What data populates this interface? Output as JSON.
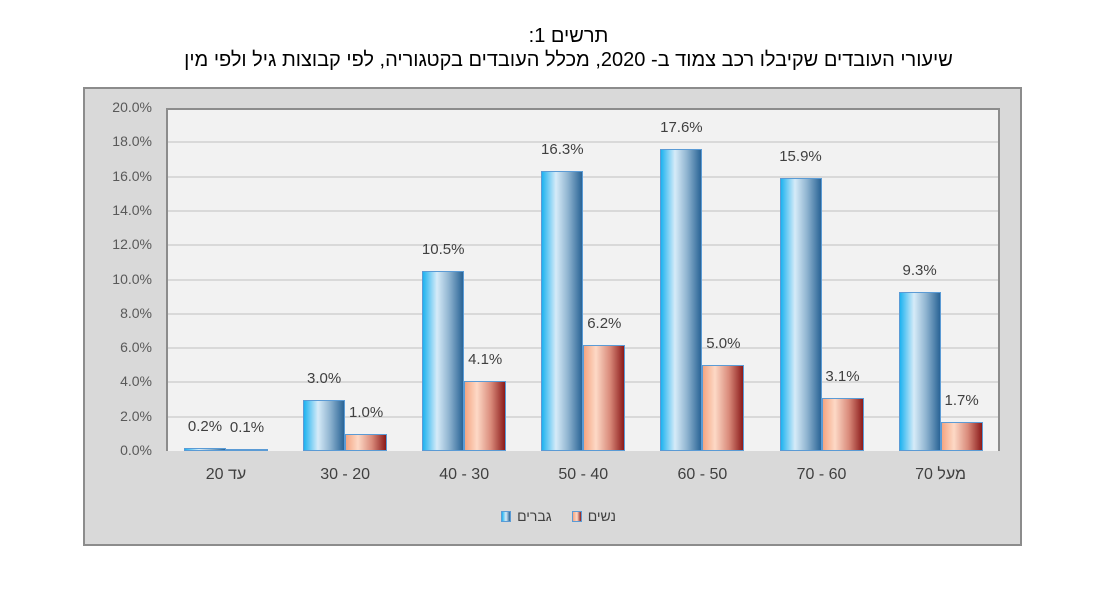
{
  "title": {
    "line1": "תרשים 1:",
    "line2": "שיעורי העובדים שקיבלו רכב צמוד ב- 2020, מכלל העובדים בקטגוריה, לפי קבוצות גיל ולפי מין"
  },
  "legend": {
    "men": "גברים",
    "women": "נשים"
  },
  "colors": {
    "men": "#2a9fd8",
    "women": "#c0504d",
    "plot_background": "#f2f2f2",
    "frame_background": "#d9d9d9"
  },
  "chart_data": {
    "type": "bar",
    "title": "תרשים 1: שיעורי העובדים שקיבלו רכב צמוד ב- 2020, מכלל העובדים בקטגוריה, לפי קבוצות גיל ולפי מין",
    "xlabel": "",
    "ylabel": "",
    "categories": [
      "עד 20",
      "30 - 20",
      "40 - 30",
      "50 - 40",
      "60 - 50",
      "70 - 60",
      "מעל 70"
    ],
    "series": [
      {
        "name": "גברים",
        "values": [
          0.2,
          3.0,
          10.5,
          16.3,
          17.6,
          15.9,
          9.3
        ],
        "labels": [
          "0.2%",
          "3.0%",
          "10.5%",
          "16.3%",
          "17.6%",
          "15.9%",
          "9.3%"
        ]
      },
      {
        "name": "נשים",
        "values": [
          0.1,
          1.0,
          4.1,
          6.2,
          5.0,
          3.1,
          1.7
        ],
        "labels": [
          "0.1%",
          "1.0%",
          "4.1%",
          "6.2%",
          "5.0%",
          "3.1%",
          "1.7%"
        ]
      }
    ],
    "yticks": [
      "0.0%",
      "2.0%",
      "4.0%",
      "6.0%",
      "8.0%",
      "10.0%",
      "12.0%",
      "14.0%",
      "16.0%",
      "18.0%",
      "20.0%"
    ],
    "ylim": [
      0,
      20
    ],
    "grid": true,
    "legend_position": "bottom",
    "unit": "%"
  }
}
